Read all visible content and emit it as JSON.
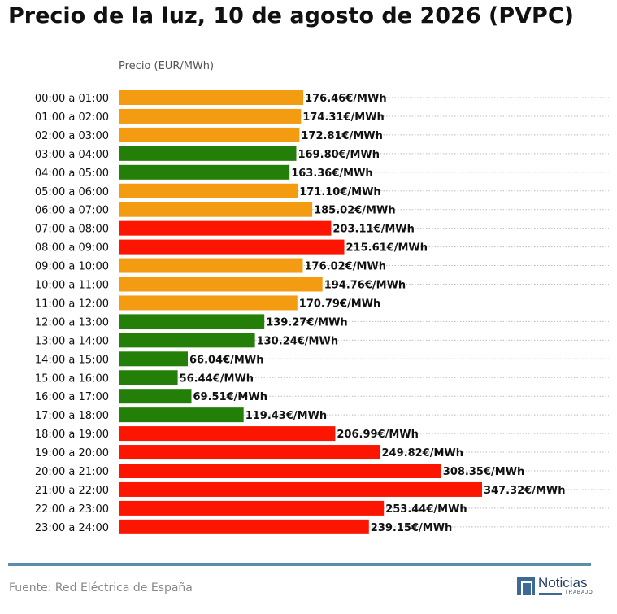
{
  "title": "Precio de la luz, 10 de agosto de 2026 (PVPC)",
  "source": "Fuente: Red Eléctrica de España",
  "logo": {
    "text": "Noticias",
    "sub": "TRABAJO"
  },
  "colors": {
    "low": "#237f07",
    "mid": "#f39c12",
    "high": "#fc1500",
    "rule": "#5b8fa8",
    "grid": "#bbbbbb"
  },
  "chart_data": {
    "type": "bar",
    "orientation": "horizontal",
    "ylabel": "Precio (EUR/MWh)",
    "unit_suffix": "€/MWh",
    "categories": [
      "00:00 a 01:00",
      "01:00 a 02:00",
      "02:00 a 03:00",
      "03:00 a 04:00",
      "04:00 a 05:00",
      "05:00 a 06:00",
      "06:00 a 07:00",
      "07:00 a 08:00",
      "08:00 a 09:00",
      "09:00 a 10:00",
      "10:00 a 11:00",
      "11:00 a 12:00",
      "12:00 a 13:00",
      "13:00 a 14:00",
      "14:00 a 15:00",
      "15:00 a 16:00",
      "16:00 a 17:00",
      "17:00 a 18:00",
      "18:00 a 19:00",
      "19:00 a 20:00",
      "20:00 a 21:00",
      "21:00 a 22:00",
      "22:00 a 23:00",
      "23:00 a 24:00"
    ],
    "values": [
      176.46,
      174.31,
      172.81,
      169.8,
      163.36,
      171.1,
      185.02,
      203.11,
      215.61,
      176.02,
      194.76,
      170.79,
      139.27,
      130.24,
      66.04,
      56.44,
      69.51,
      119.43,
      206.99,
      249.82,
      308.35,
      347.32,
      253.44,
      239.15
    ],
    "value_labels": [
      "176.46€/MWh",
      "174.31€/MWh",
      "172.81€/MWh",
      "169.80€/MWh",
      "163.36€/MWh",
      "171.10€/MWh",
      "185.02€/MWh",
      "203.11€/MWh",
      "215.61€/MWh",
      "176.02€/MWh",
      "194.76€/MWh",
      "170.79€/MWh",
      "139.27€/MWh",
      "130.24€/MWh",
      "66.04€/MWh",
      "56.44€/MWh",
      "69.51€/MWh",
      "119.43€/MWh",
      "206.99€/MWh",
      "249.82€/MWh",
      "308.35€/MWh",
      "347.32€/MWh",
      "253.44€/MWh",
      "239.15€/MWh"
    ],
    "levels": [
      "mid",
      "mid",
      "mid",
      "low",
      "low",
      "mid",
      "mid",
      "high",
      "high",
      "mid",
      "mid",
      "mid",
      "low",
      "low",
      "low",
      "low",
      "low",
      "low",
      "high",
      "high",
      "high",
      "high",
      "high",
      "high"
    ],
    "grid": true
  }
}
